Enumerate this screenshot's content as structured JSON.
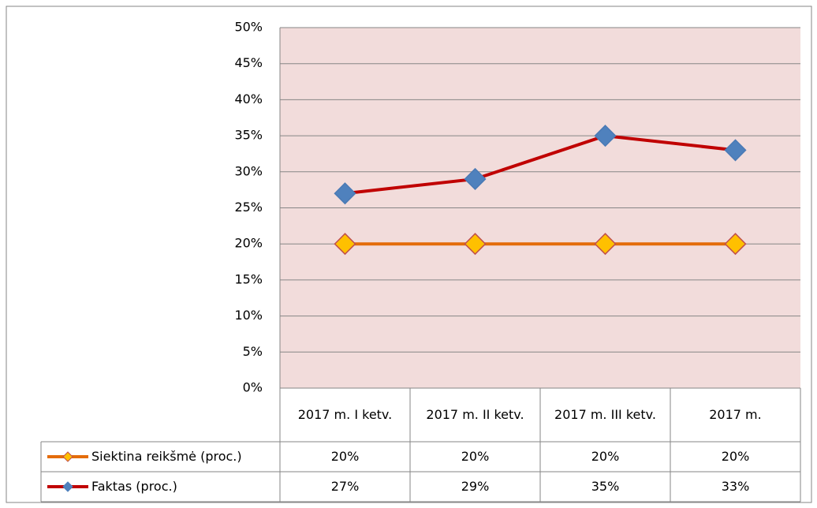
{
  "chart_data": {
    "type": "line",
    "categories": [
      "2017 m. I ketv.",
      "2017 m. II ketv.",
      "2017 m. III ketv.",
      "2017 m."
    ],
    "series": [
      {
        "name": "Siektina reikšmė (proc.)",
        "color": "#e46c0a",
        "marker_color": "#ffc000",
        "values": [
          20,
          20,
          20,
          20
        ],
        "value_labels": [
          "20%",
          "20%",
          "20%",
          "20%"
        ]
      },
      {
        "name": "Faktas (proc.)",
        "color": "#c00000",
        "marker_color": "#4f81bd",
        "values": [
          27,
          29,
          35,
          33
        ],
        "value_labels": [
          "27%",
          "29%",
          "35%",
          "33%"
        ]
      }
    ],
    "ylim": [
      0,
      50
    ],
    "yticks": [
      {
        "value": 0,
        "label": "0%"
      },
      {
        "value": 5,
        "label": "5%"
      },
      {
        "value": 10,
        "label": "10%"
      },
      {
        "value": 15,
        "label": "15%"
      },
      {
        "value": 20,
        "label": "20%"
      },
      {
        "value": 25,
        "label": "25%"
      },
      {
        "value": 30,
        "label": "30%"
      },
      {
        "value": 35,
        "label": "35%"
      },
      {
        "value": 40,
        "label": "40%"
      },
      {
        "value": 45,
        "label": "45%"
      },
      {
        "value": 50,
        "label": "50%"
      }
    ],
    "grid": true,
    "plot_background": "#f2dcdb",
    "data_table": true
  }
}
